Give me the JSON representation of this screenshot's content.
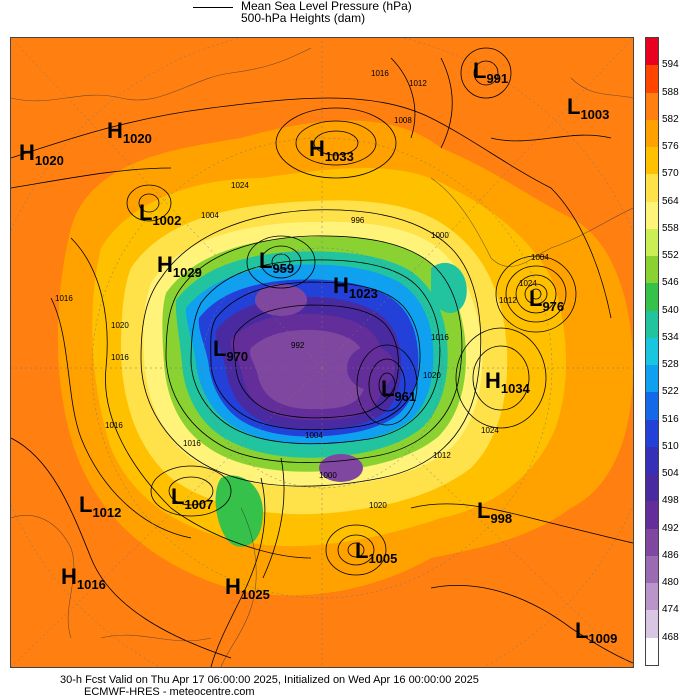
{
  "legend": {
    "line1": "Mean Sea Level Pressure (hPa)",
    "line2": "500-hPa Heights (dam)"
  },
  "colorbar": {
    "labels": [
      "594",
      "588",
      "582",
      "576",
      "570",
      "564",
      "558",
      "552",
      "546",
      "540",
      "534",
      "528",
      "522",
      "516",
      "510",
      "504",
      "498",
      "492",
      "486",
      "480",
      "474",
      "468"
    ],
    "colors": [
      "#e8001e",
      "#ff4500",
      "#ff7f11",
      "#ffa200",
      "#ffc000",
      "#ffe14a",
      "#fff37a",
      "#ccee55",
      "#8ad232",
      "#35c14a",
      "#22c4a0",
      "#18c6e0",
      "#0fa0ef",
      "#1469e8",
      "#2341d8",
      "#3630b8",
      "#4a2aa0",
      "#632d9a",
      "#7f479f",
      "#9a6bb3",
      "#b995c9",
      "#d9c6e3",
      "#ffffff"
    ]
  },
  "pressure_centers": [
    {
      "type": "H",
      "value": "1020"
    },
    {
      "type": "H",
      "value": "1020"
    },
    {
      "type": "H",
      "value": "1033"
    },
    {
      "type": "L",
      "value": "991"
    },
    {
      "type": "L",
      "value": "1003"
    },
    {
      "type": "L",
      "value": "1002"
    },
    {
      "type": "H",
      "value": "1029"
    },
    {
      "type": "L",
      "value": "959"
    },
    {
      "type": "H",
      "value": "1023"
    },
    {
      "type": "L",
      "value": "976"
    },
    {
      "type": "L",
      "value": "970"
    },
    {
      "type": "L",
      "value": "961"
    },
    {
      "type": "H",
      "value": "1034"
    },
    {
      "type": "L",
      "value": "1012"
    },
    {
      "type": "L",
      "value": "1007"
    },
    {
      "type": "L",
      "value": "998"
    },
    {
      "type": "L",
      "value": "1005"
    },
    {
      "type": "H",
      "value": "1016"
    },
    {
      "type": "H",
      "value": "1025"
    },
    {
      "type": "L",
      "value": "1009"
    }
  ],
  "isobar_labels": [
    "1016",
    "1012",
    "1008",
    "1024",
    "1004",
    "996",
    "1000",
    "1016",
    "1020",
    "1016",
    "1016",
    "1024",
    "1012",
    "1016",
    "1020",
    "1000",
    "992",
    "1004",
    "1024",
    "1012",
    "1016",
    "1020",
    "1004"
  ],
  "footer": {
    "line1": "30-h Fcst Valid on Thu Apr 17 06:00:00 2025, Initialized on Wed Apr 16 00:00:00 2025",
    "line2": "ECMWF-HRES  - meteocentre.com"
  }
}
